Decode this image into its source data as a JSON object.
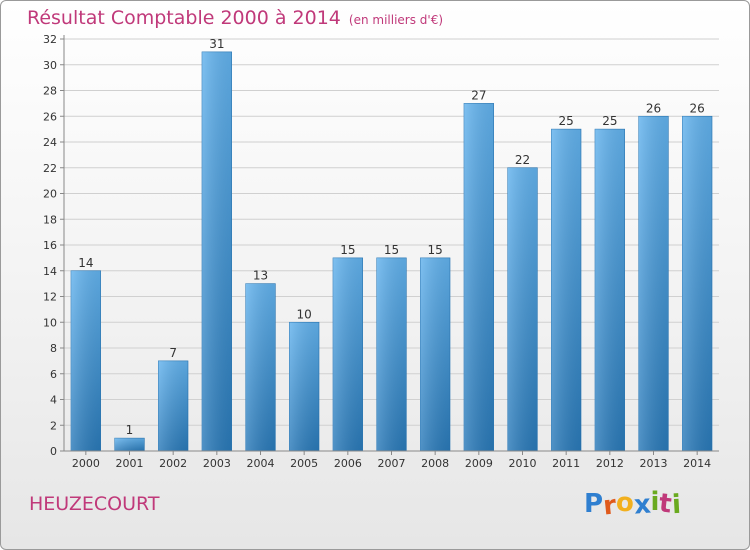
{
  "title": "Résultat Comptable 2000 à 2014",
  "subtitle": "(en milliers d'€)",
  "place": "HEUZECOURT",
  "brand": {
    "name": "Proxiti",
    "letters": [
      "P",
      "r",
      "o",
      "x",
      "i",
      "t",
      "i"
    ],
    "letter_colors": [
      "#2f7fd0",
      "#e05a1c",
      "#f2b01e",
      "#2f7fd0",
      "#6aaa1f",
      "#c0397a",
      "#6aaa1f"
    ]
  },
  "colors": {
    "title": "#c0397a",
    "bar_light": "#63b3ee",
    "bar_dark": "#2a7ab9",
    "grid": "#d0d0d0",
    "axis_text": "#333333"
  },
  "chart_data": {
    "type": "bar",
    "title": "Résultat Comptable 2000 à 2014",
    "xlabel": "",
    "ylabel": "(en milliers d'€)",
    "categories": [
      "2000",
      "2001",
      "2002",
      "2003",
      "2004",
      "2005",
      "2006",
      "2007",
      "2008",
      "2009",
      "2010",
      "2011",
      "2012",
      "2013",
      "2014"
    ],
    "values": [
      14,
      1,
      7,
      31,
      13,
      10,
      15,
      15,
      15,
      27,
      22,
      25,
      25,
      26,
      26
    ],
    "ylim": [
      0,
      32
    ],
    "yticks": [
      0,
      2,
      4,
      6,
      8,
      10,
      12,
      14,
      16,
      18,
      20,
      22,
      24,
      26,
      28,
      30,
      32
    ],
    "grid": true
  }
}
